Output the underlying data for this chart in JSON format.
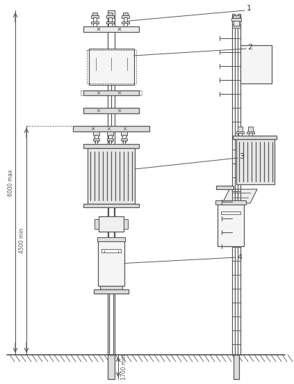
{
  "bg_color": "#ffffff",
  "line_color": "#555555",
  "dim_color": "#555555",
  "label_color": "#333333",
  "fig_width": 4.23,
  "fig_height": 5.52,
  "dpi": 100,
  "annotations": {
    "label1": "1",
    "label2": "2",
    "label3": "3",
    "label4": "4",
    "dim_6000": "6000 max",
    "dim_4500": "4500 min",
    "dim_1700": "1700 min"
  }
}
